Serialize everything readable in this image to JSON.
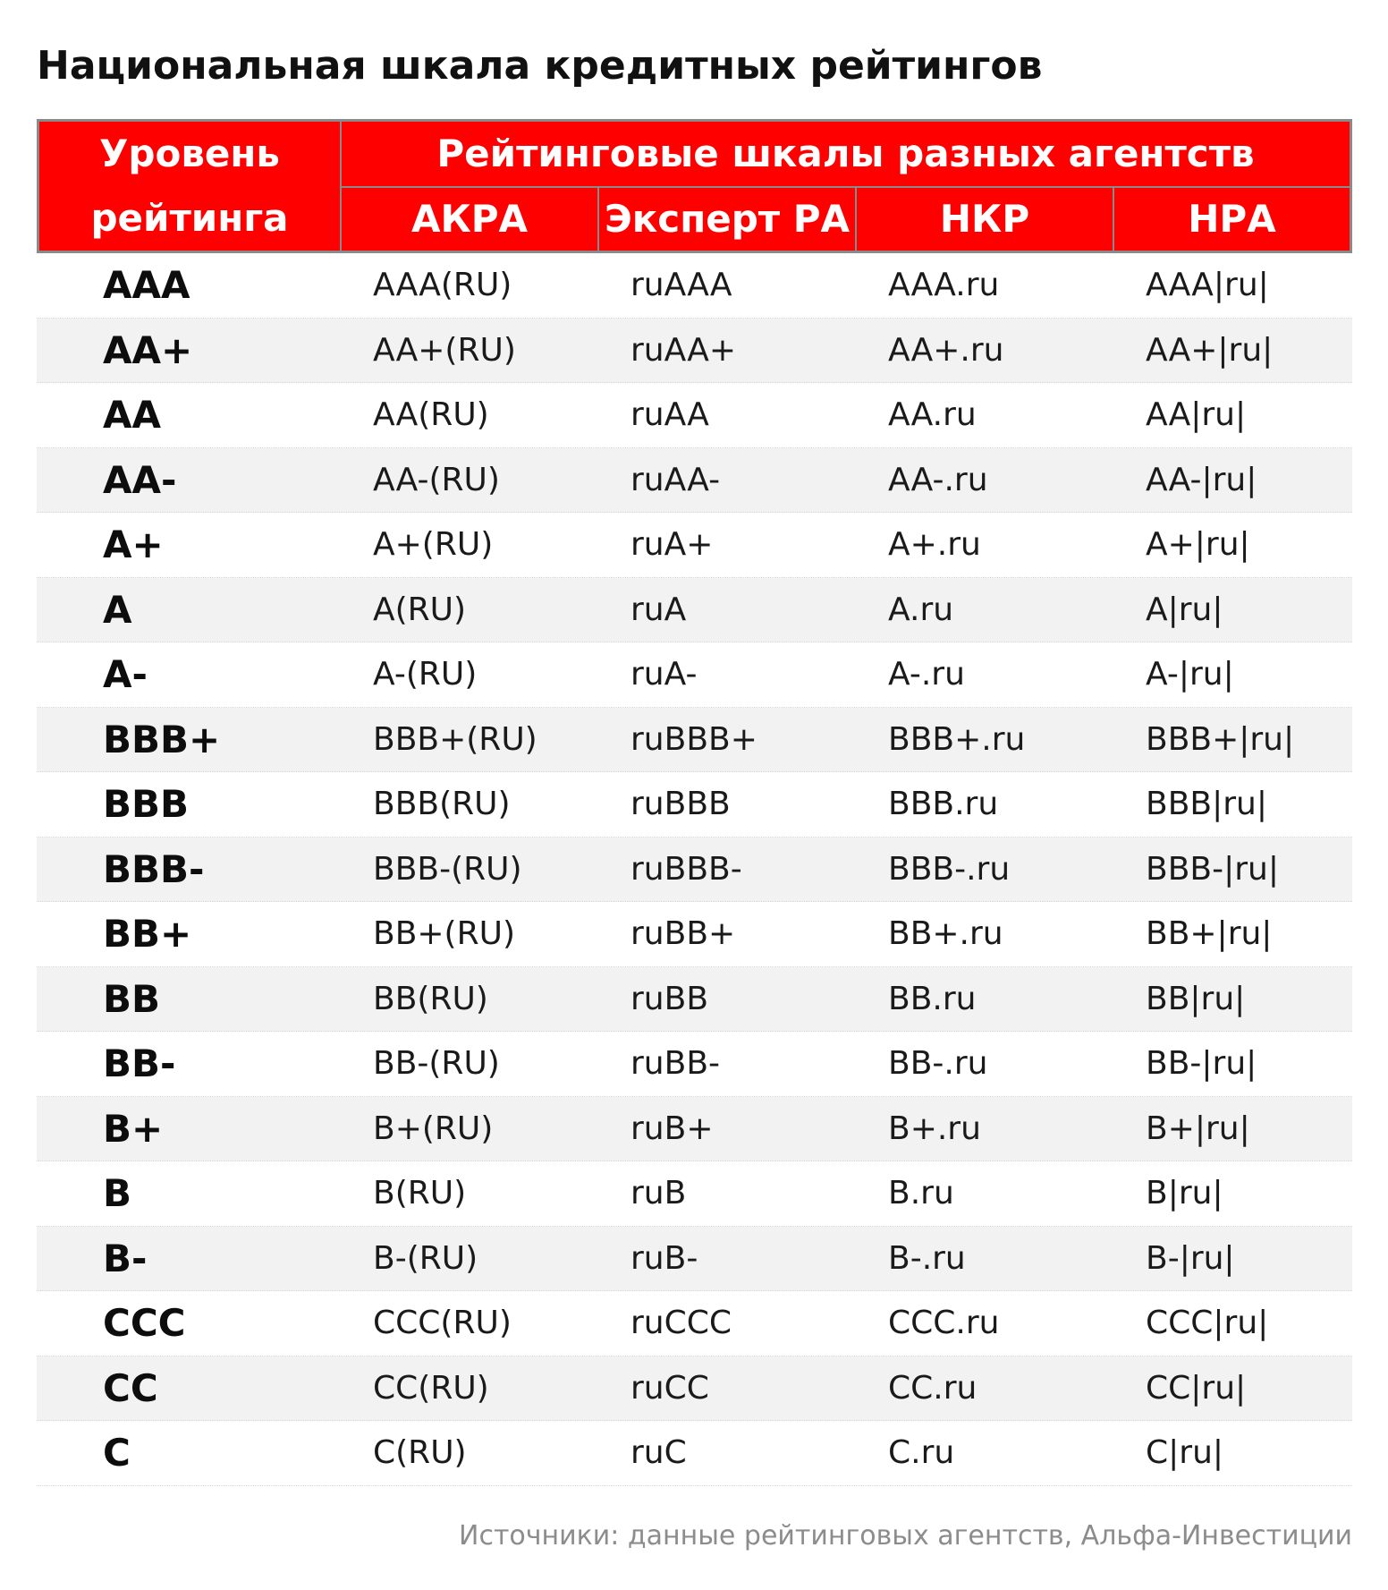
{
  "title": "Национальная шкала кредитных рейтингов",
  "header": {
    "level_line1": "Уровень",
    "level_line2": "рейтинга",
    "group": "Рейтинговые шкалы разных агентств",
    "agencies": [
      "АКРА",
      "Эксперт РА",
      "НКР",
      "НРА"
    ]
  },
  "rows": [
    {
      "level": "AAA",
      "akra": "AAA(RU)",
      "expert": "ruAAA",
      "nkr": "AAA.ru",
      "nra": "AAA|ru|"
    },
    {
      "level": "AA+",
      "akra": "AA+(RU)",
      "expert": "ruAA+",
      "nkr": "AA+.ru",
      "nra": "AA+|ru|"
    },
    {
      "level": "AA",
      "akra": "AA(RU)",
      "expert": "ruAA",
      "nkr": "AA.ru",
      "nra": "AA|ru|"
    },
    {
      "level": "AA-",
      "akra": "AA-(RU)",
      "expert": "ruAA-",
      "nkr": "AA-.ru",
      "nra": "AA-|ru|"
    },
    {
      "level": "A+",
      "akra": "A+(RU)",
      "expert": "ruA+",
      "nkr": "A+.ru",
      "nra": "A+|ru|"
    },
    {
      "level": "A",
      "akra": "A(RU)",
      "expert": "ruA",
      "nkr": "A.ru",
      "nra": "A|ru|"
    },
    {
      "level": "A-",
      "akra": "A-(RU)",
      "expert": "ruA-",
      "nkr": "A-.ru",
      "nra": "A-|ru|"
    },
    {
      "level": "BBB+",
      "akra": "BBB+(RU)",
      "expert": "ruBBB+",
      "nkr": "BBB+.ru",
      "nra": "BBB+|ru|"
    },
    {
      "level": "BBB",
      "akra": "BBB(RU)",
      "expert": "ruBBB",
      "nkr": "BBB.ru",
      "nra": "BBB|ru|"
    },
    {
      "level": "BBB-",
      "akra": "BBB-(RU)",
      "expert": "ruBBB-",
      "nkr": "BBB-.ru",
      "nra": "BBB-|ru|"
    },
    {
      "level": "BB+",
      "akra": "BB+(RU)",
      "expert": "ruBB+",
      "nkr": "BB+.ru",
      "nra": "BB+|ru|"
    },
    {
      "level": "BB",
      "akra": "BB(RU)",
      "expert": "ruBB",
      "nkr": "BB.ru",
      "nra": "BB|ru|"
    },
    {
      "level": "BB-",
      "akra": "BB-(RU)",
      "expert": "ruBB-",
      "nkr": "BB-.ru",
      "nra": "BB-|ru|"
    },
    {
      "level": "B+",
      "akra": "B+(RU)",
      "expert": "ruB+",
      "nkr": "B+.ru",
      "nra": "B+|ru|"
    },
    {
      "level": "B",
      "akra": "B(RU)",
      "expert": "ruB",
      "nkr": "B.ru",
      "nra": "B|ru|"
    },
    {
      "level": "B-",
      "akra": "B-(RU)",
      "expert": "ruB-",
      "nkr": "B-.ru",
      "nra": "B-|ru|"
    },
    {
      "level": "CCC",
      "akra": "CCC(RU)",
      "expert": "ruCCC",
      "nkr": "CCC.ru",
      "nra": "CCC|ru|"
    },
    {
      "level": "CC",
      "akra": "CC(RU)",
      "expert": "ruCC",
      "nkr": "CC.ru",
      "nra": "CC|ru|"
    },
    {
      "level": "C",
      "akra": "C(RU)",
      "expert": "ruC",
      "nkr": "C.ru",
      "nra": "C|ru|"
    }
  ],
  "source": "Источники: данные рейтинговых агентств, Альфа-Инвестиции",
  "colors": {
    "header_bg": "#ff0000",
    "header_text": "#ffffff",
    "row_alt_bg": "#f2f2f2",
    "border": "#8a8a8a",
    "source_text": "#8c8c8c"
  }
}
